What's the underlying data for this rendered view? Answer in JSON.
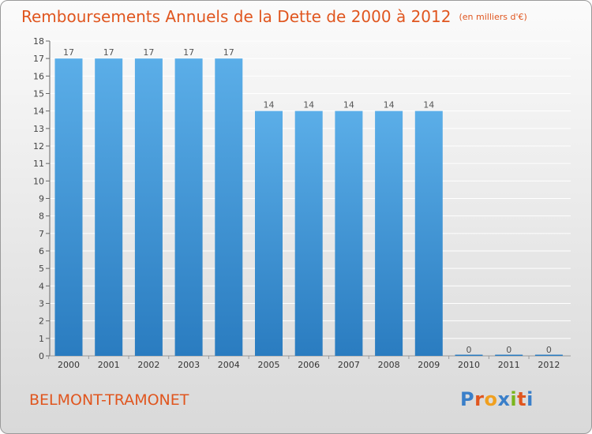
{
  "title": "Remboursements Annuels de la Dette de 2000 à 2012",
  "unit": "(en milliers d'€)",
  "commune": "BELMONT-TRAMONET",
  "brand": {
    "text": "Proxiti",
    "colors": [
      "#3a7fc9",
      "#e0561f",
      "#f0a020",
      "#3a7fc9",
      "#7ab51d",
      "#e0561f",
      "#3a7fc9"
    ]
  },
  "colors": {
    "bar_top": "#5baee8",
    "bar_bottom": "#2a7cc0",
    "accent": "#e0561f",
    "grid": "#ffffff"
  },
  "chart_data": {
    "type": "bar",
    "categories": [
      "2000",
      "2001",
      "2002",
      "2003",
      "2004",
      "2005",
      "2006",
      "2007",
      "2008",
      "2009",
      "2010",
      "2011",
      "2012"
    ],
    "values": [
      17,
      17,
      17,
      17,
      17,
      14,
      14,
      14,
      14,
      14,
      0,
      0,
      0
    ],
    "ylim": [
      0,
      18
    ],
    "yticks": [
      0,
      1,
      2,
      3,
      4,
      5,
      6,
      7,
      8,
      9,
      10,
      11,
      12,
      13,
      14,
      15,
      16,
      17,
      18
    ],
    "grid": true
  }
}
